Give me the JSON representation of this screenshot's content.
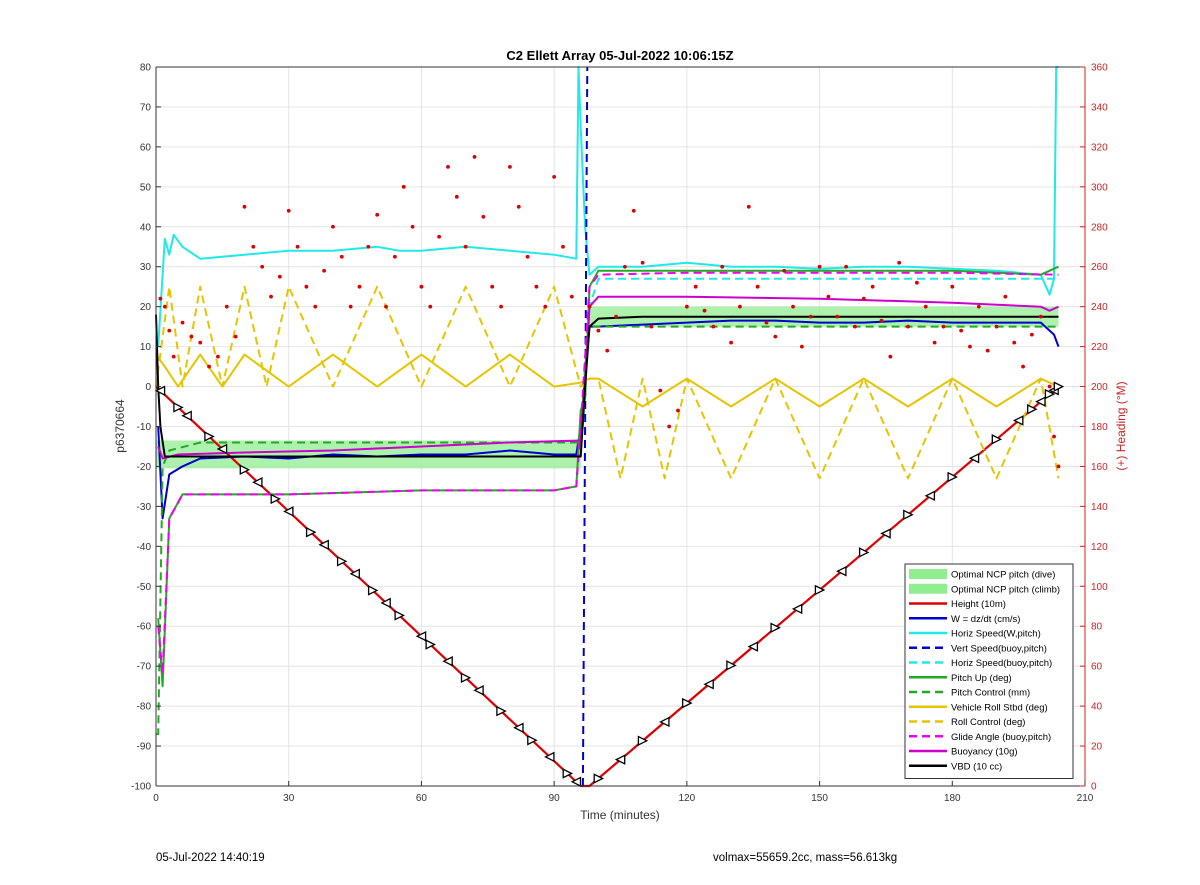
{
  "chart_data": {
    "type": "line",
    "title": "C2 Ellett Array 05-Jul-2022 10:06:15Z",
    "xlabel": "Time (minutes)",
    "ylabel": "p6370664",
    "y2label": "(+) Heading (°M)",
    "xlim": [
      0,
      210
    ],
    "ylim": [
      -100,
      80
    ],
    "y2lim": [
      0,
      360
    ],
    "xticks": [
      0,
      30,
      60,
      90,
      120,
      150,
      180,
      210
    ],
    "yticks": [
      -100,
      -90,
      -80,
      -70,
      -60,
      -50,
      -40,
      -30,
      -20,
      -10,
      0,
      10,
      20,
      30,
      40,
      50,
      60,
      70,
      80
    ],
    "y2ticks": [
      0,
      20,
      40,
      60,
      80,
      100,
      120,
      140,
      160,
      180,
      200,
      220,
      240,
      260,
      280,
      300,
      320,
      340,
      360
    ],
    "grid": true,
    "legend_position": "bottom-right",
    "bands": [
      {
        "name": "Optimal NCP pitch (dive)",
        "color": "#90ee90",
        "x": [
          0,
          96
        ],
        "y": [
          -20.5,
          -13.5
        ]
      },
      {
        "name": "Optimal NCP pitch (climb)",
        "color": "#90ee90",
        "x": [
          98,
          204
        ],
        "y": [
          15,
          20
        ]
      }
    ],
    "series": [
      {
        "name": "Height (10m)",
        "color": "#dd0000",
        "style": "solid",
        "x": [
          0,
          96,
          98,
          204
        ],
        "y": [
          0,
          -100,
          -100,
          0
        ]
      },
      {
        "name": "W = dz/dt (cm/s)",
        "color": "#0000cc",
        "style": "solid",
        "x": [
          0.5,
          1.5,
          3,
          6,
          10,
          20,
          30,
          40,
          50,
          60,
          70,
          80,
          90,
          95,
          96,
          98,
          100,
          110,
          120,
          130,
          140,
          150,
          160,
          170,
          180,
          190,
          200,
          203,
          204
        ],
        "y": [
          -10,
          -33,
          -22,
          -20,
          -18,
          -17.5,
          -18,
          -17,
          -17.5,
          -17,
          -17,
          -16,
          -17,
          -17,
          -10,
          15,
          15,
          15.5,
          16,
          16.5,
          16.5,
          16,
          16,
          16.5,
          16,
          16,
          16,
          13,
          10
        ]
      },
      {
        "name": "Horiz Speed(W,pitch)",
        "color": "#22e8e8",
        "style": "solid",
        "x": [
          0.5,
          2,
          3,
          4,
          6,
          10,
          20,
          30,
          40,
          50,
          55,
          60,
          70,
          80,
          90,
          95,
          95.5,
          96,
          97,
          98,
          100,
          110,
          120,
          130,
          140,
          150,
          160,
          170,
          180,
          190,
          200,
          202,
          203,
          203.5,
          204
        ],
        "y": [
          10,
          37,
          33,
          38,
          35,
          32,
          33,
          34,
          34,
          35,
          34,
          34,
          35,
          34,
          33,
          32,
          80,
          65,
          40,
          28,
          30,
          30,
          31,
          30,
          30,
          29.5,
          30,
          30,
          29.5,
          29,
          28,
          23,
          27,
          80,
          80
        ]
      },
      {
        "name": "Vert Speed(buoy,pitch)",
        "color": "#0000cc",
        "style": "dashed",
        "x": [
          96.5,
          97.5
        ],
        "y": [
          -100,
          80
        ]
      },
      {
        "name": "Horiz Speed(buoy,pitch)",
        "color": "#22e8e8",
        "style": "dashed",
        "x": [
          96.5,
          98,
          100,
          204
        ],
        "y": [
          -10,
          20,
          27,
          27
        ]
      },
      {
        "name": "Pitch Up (deg)",
        "color": "#22aa22",
        "style": "solid",
        "x": [
          0.5,
          1.5,
          3,
          6,
          30,
          60,
          90,
          95,
          96,
          97,
          98,
          100,
          120,
          140,
          160,
          180,
          200,
          204
        ],
        "y": [
          -58,
          -75,
          -33,
          -27,
          -27,
          -26,
          -26,
          -25,
          -6,
          -3,
          25,
          29,
          29,
          29,
          29,
          29,
          28,
          30
        ]
      },
      {
        "name": "Pitch Control (mm)",
        "color": "#22aa22",
        "style": "dashed",
        "x": [
          0,
          0.5,
          1.5,
          3,
          10,
          30,
          60,
          90,
          96,
          97,
          98,
          100,
          120,
          150,
          180,
          200,
          204
        ],
        "y": [
          -87,
          -87,
          -20,
          -16,
          -14,
          -14,
          -14,
          -14,
          -14,
          5,
          15,
          15,
          15,
          15,
          15,
          15,
          15
        ]
      },
      {
        "name": "Vehicle Roll Stbd (deg)",
        "color": "#e6c400",
        "style": "solid",
        "x": [
          0,
          2,
          5,
          10,
          15,
          20,
          30,
          40,
          50,
          60,
          70,
          80,
          90,
          96,
          98,
          100,
          110,
          120,
          130,
          140,
          150,
          160,
          170,
          180,
          190,
          200,
          204
        ],
        "y": [
          8,
          5,
          0,
          8,
          0,
          8,
          0,
          8,
          0,
          8,
          0,
          8,
          0,
          1,
          2,
          2,
          -5,
          2,
          -5,
          2,
          -5,
          2,
          -5,
          2,
          -5,
          2,
          0
        ]
      },
      {
        "name": "Roll Control (deg)",
        "color": "#e6c400",
        "style": "dashed",
        "x": [
          0,
          3,
          6,
          10,
          15,
          20,
          25,
          30,
          40,
          50,
          60,
          70,
          80,
          90,
          96,
          98,
          100,
          105,
          110,
          115,
          120,
          130,
          140,
          150,
          160,
          170,
          180,
          190,
          200,
          204
        ],
        "y": [
          0,
          25,
          0,
          25,
          0,
          25,
          0,
          25,
          0,
          25,
          0,
          25,
          0,
          25,
          0,
          2,
          2,
          -23,
          2,
          -23,
          2,
          -23,
          2,
          -23,
          2,
          -23,
          2,
          -23,
          2,
          -23
        ]
      },
      {
        "name": "Glide Angle (buoy,pitch)",
        "color": "#ee00ee",
        "style": "dashed",
        "x": [
          0.5,
          1.5,
          3,
          6,
          30,
          60,
          90,
          95,
          96,
          98,
          100,
          120,
          150,
          180,
          204
        ],
        "y": [
          -60,
          -72,
          -33,
          -27,
          -27,
          -26,
          -26,
          -25,
          -10,
          25,
          28,
          28.5,
          28.5,
          28.5,
          28
        ]
      },
      {
        "name": "Buoyancy (10g)",
        "color": "#cc00cc",
        "style": "solid",
        "x": [
          0.5,
          1.5,
          5,
          20,
          40,
          60,
          80,
          96,
          97,
          98,
          100,
          120,
          150,
          180,
          200,
          202,
          204
        ],
        "y": [
          -15,
          -18,
          -17,
          -16.5,
          -16,
          -15,
          -14,
          -13.5,
          0,
          20,
          22.5,
          22.5,
          22,
          21,
          20,
          19,
          20
        ]
      },
      {
        "name": "VBD (10 cc)",
        "color": "#000000",
        "style": "solid",
        "x": [
          0,
          0.5,
          1,
          2,
          10,
          40,
          70,
          96,
          97,
          98,
          100,
          110,
          204
        ],
        "y": [
          18,
          0,
          -10,
          -17.5,
          -17.5,
          -17.5,
          -17.5,
          -17.5,
          0,
          15,
          17,
          17.5,
          17.5
        ]
      }
    ],
    "heading_points": {
      "name": "Heading",
      "color": "#dd0000",
      "axis": "right",
      "values": [
        [
          1,
          244
        ],
        [
          2,
          240
        ],
        [
          3,
          228
        ],
        [
          4,
          215
        ],
        [
          6,
          232
        ],
        [
          8,
          225
        ],
        [
          10,
          222
        ],
        [
          12,
          210
        ],
        [
          14,
          215
        ],
        [
          16,
          240
        ],
        [
          18,
          225
        ],
        [
          20,
          290
        ],
        [
          22,
          270
        ],
        [
          24,
          260
        ],
        [
          26,
          245
        ],
        [
          28,
          255
        ],
        [
          30,
          288
        ],
        [
          32,
          270
        ],
        [
          34,
          250
        ],
        [
          36,
          240
        ],
        [
          38,
          258
        ],
        [
          40,
          280
        ],
        [
          42,
          265
        ],
        [
          44,
          240
        ],
        [
          46,
          250
        ],
        [
          48,
          270
        ],
        [
          50,
          286
        ],
        [
          52,
          240
        ],
        [
          54,
          265
        ],
        [
          56,
          300
        ],
        [
          58,
          280
        ],
        [
          60,
          250
        ],
        [
          62,
          240
        ],
        [
          64,
          275
        ],
        [
          66,
          310
        ],
        [
          68,
          295
        ],
        [
          70,
          270
        ],
        [
          72,
          315
        ],
        [
          74,
          285
        ],
        [
          76,
          250
        ],
        [
          78,
          240
        ],
        [
          80,
          310
        ],
        [
          82,
          290
        ],
        [
          84,
          265
        ],
        [
          86,
          250
        ],
        [
          88,
          240
        ],
        [
          90,
          305
        ],
        [
          92,
          270
        ],
        [
          94,
          245
        ],
        [
          98,
          240
        ],
        [
          100,
          228
        ],
        [
          102,
          218
        ],
        [
          104,
          235
        ],
        [
          106,
          260
        ],
        [
          108,
          288
        ],
        [
          110,
          262
        ],
        [
          112,
          230
        ],
        [
          114,
          198
        ],
        [
          116,
          180
        ],
        [
          118,
          188
        ],
        [
          120,
          240
        ],
        [
          122,
          250
        ],
        [
          124,
          238
        ],
        [
          126,
          230
        ],
        [
          128,
          260
        ],
        [
          130,
          222
        ],
        [
          132,
          240
        ],
        [
          134,
          290
        ],
        [
          136,
          250
        ],
        [
          138,
          232
        ],
        [
          140,
          225
        ],
        [
          142,
          258
        ],
        [
          144,
          240
        ],
        [
          146,
          220
        ],
        [
          148,
          235
        ],
        [
          150,
          260
        ],
        [
          152,
          245
        ],
        [
          154,
          235
        ],
        [
          156,
          260
        ],
        [
          158,
          230
        ],
        [
          160,
          244
        ],
        [
          162,
          250
        ],
        [
          164,
          233
        ],
        [
          166,
          215
        ],
        [
          168,
          262
        ],
        [
          170,
          230
        ],
        [
          172,
          252
        ],
        [
          174,
          240
        ],
        [
          176,
          222
        ],
        [
          178,
          230
        ],
        [
          180,
          250
        ],
        [
          182,
          228
        ],
        [
          184,
          220
        ],
        [
          186,
          240
        ],
        [
          188,
          218
        ],
        [
          190,
          230
        ],
        [
          192,
          245
        ],
        [
          194,
          222
        ],
        [
          196,
          210
        ],
        [
          198,
          226
        ],
        [
          200,
          235
        ],
        [
          202,
          200
        ],
        [
          203,
          175
        ],
        [
          204,
          160
        ]
      ]
    },
    "height_markers": {
      "name": "Height markers",
      "color": "#000000",
      "dive_x": [
        1,
        5,
        7,
        12,
        15,
        20,
        23,
        27,
        30,
        35,
        38,
        42,
        45,
        49,
        52,
        55,
        60,
        62,
        66,
        70,
        73,
        78,
        82,
        85,
        89,
        93,
        95
      ],
      "climb_x": [
        100,
        105,
        110,
        115,
        120,
        125,
        130,
        135,
        140,
        145,
        150,
        155,
        160,
        165,
        170,
        175,
        180,
        185,
        190,
        195,
        198,
        200,
        202,
        203,
        204
      ]
    }
  },
  "footer": {
    "timestamp": "05-Jul-2022 14:40:19",
    "info": "volmax=55659.2cc, mass=56.613kg"
  }
}
